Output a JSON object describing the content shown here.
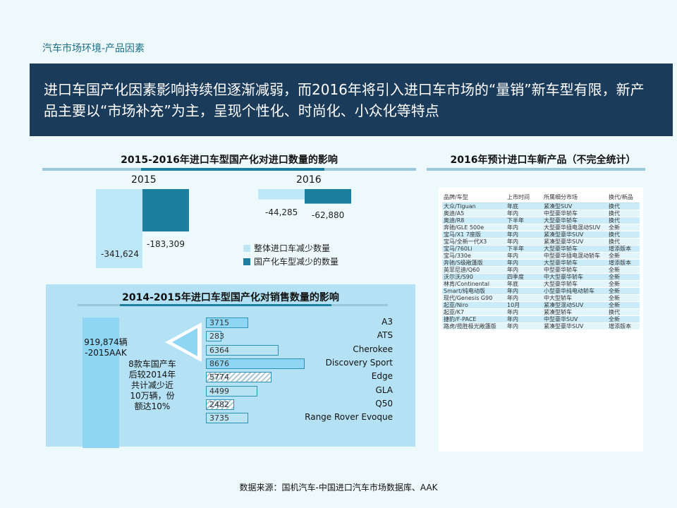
{
  "header": {
    "section": "汽车市场环境-产品因素",
    "banner": "进口车国产化因素影响持续但逐渐减弱，而2016年将引入进口车市场的“量销”新车型有限，新产品主要以“市场补充”为主，呈现个性化、时尚化、小众化等特点"
  },
  "colors": {
    "banner_bg": "#1b3b5a",
    "accent_dark": "#1d7fa0",
    "accent_light": "#bde7f7",
    "panel_bg": "#b4e2f4"
  },
  "chart_data": [
    {
      "type": "bar",
      "title": "2015-2016年进口车型国产化对进口数量的影响",
      "categories": [
        "2015",
        "2016"
      ],
      "series": [
        {
          "name": "整体进口车减少数量",
          "values": [
            -341624,
            -44285
          ],
          "labels": [
            "-341,624",
            "-44,285"
          ],
          "color": "#bde7f7"
        },
        {
          "name": "国产化车型减少的数量",
          "values": [
            -183309,
            -62880
          ],
          "labels": [
            "-183,309",
            "-62,880"
          ],
          "color": "#1d7fa0"
        }
      ],
      "legend_position": "bottom-right"
    },
    {
      "type": "bar",
      "orientation": "horizontal",
      "title": "2014-2015年进口车型国产化对销售数量的影响",
      "total": {
        "label_line1": "919,874辆",
        "label_line2": "-2015AAK",
        "value": 919874
      },
      "note_lines": [
        "8款车国产车",
        "后较2014年",
        "共计减少近",
        "10万辆，份",
        "额达10%"
      ],
      "categories": [
        "A3",
        "ATS",
        "Cherokee",
        "Discovery  Sport",
        "Edge",
        "GLA",
        "Q50",
        "Range Rover  Evoque"
      ],
      "values": [
        3715,
        283,
        6364,
        8676,
        5774,
        4499,
        2482,
        3735
      ],
      "value_labels": [
        "3715",
        "283",
        "6364",
        "8676",
        "5774",
        "4499",
        "2482",
        "3735"
      ],
      "styles": [
        "dark",
        "solid",
        "solid",
        "dark",
        "hatch",
        "solid",
        "hatch",
        "solid"
      ],
      "xlim": [
        0,
        8676
      ]
    }
  ],
  "table": {
    "title": "2016年预计进口车新产品（不完全统计）",
    "headers": [
      "品牌/车型",
      "上市时间",
      "所属细分市场",
      "换代/新品"
    ],
    "rows": [
      [
        "大众/Tiguan",
        "年底",
        "紧凑型SUV",
        "换代"
      ],
      [
        "奥迪/A5",
        "年内",
        "中型豪华轿车",
        "换代"
      ],
      [
        "奥迪/R8",
        "下半年",
        "大型豪华轿车",
        "换代"
      ],
      [
        "奔驰/GLE 500e",
        "年内",
        "大型豪华插电混动SUV",
        "全新"
      ],
      [
        "宝马/X1 7座版",
        "年内",
        "紧凑型豪华SUV",
        "换代"
      ],
      [
        "宝马/全新一代X3",
        "年内",
        "紧凑型豪华SUV",
        "换代"
      ],
      [
        "宝马/760Li",
        "下半年",
        "大型豪华轿车",
        "增添版本"
      ],
      [
        "宝马/330e",
        "年内",
        "中型豪华插电混动轿车",
        "全新"
      ],
      [
        "奔驰/S级敞篷版",
        "年内",
        "大型豪华轿车",
        "增添版本"
      ],
      [
        "英菲尼迪/Q60",
        "年内",
        "中型豪华轿车",
        "全新"
      ],
      [
        "沃尔沃/S90",
        "四季度",
        "中大型豪华轿车",
        "全新"
      ],
      [
        "林肯/Continental",
        "年底",
        "大型豪华轿车",
        "全新"
      ],
      [
        "Smart/纯电动版",
        "年内",
        "小型豪华纯电动轿车",
        "全新"
      ],
      [
        "现代/Genesis G90",
        "年内",
        "中大型轿车",
        "全新"
      ],
      [
        "起亚/Niro",
        "10月",
        "紧凑型混动SUV",
        "全新"
      ],
      [
        "起亚/K7",
        "年内",
        "紧凑型轿车",
        "换代"
      ],
      [
        "捷豹/F-PACE",
        "年内",
        "中型豪华SUV",
        "全新"
      ],
      [
        "路虎/揽胜极光敞篷版",
        "年内",
        "紧凑型豪华SUV",
        "增添版本"
      ]
    ]
  },
  "footer": {
    "source": "数据来源：国机汽车-中国进口汽车市场数据库、AAK"
  }
}
